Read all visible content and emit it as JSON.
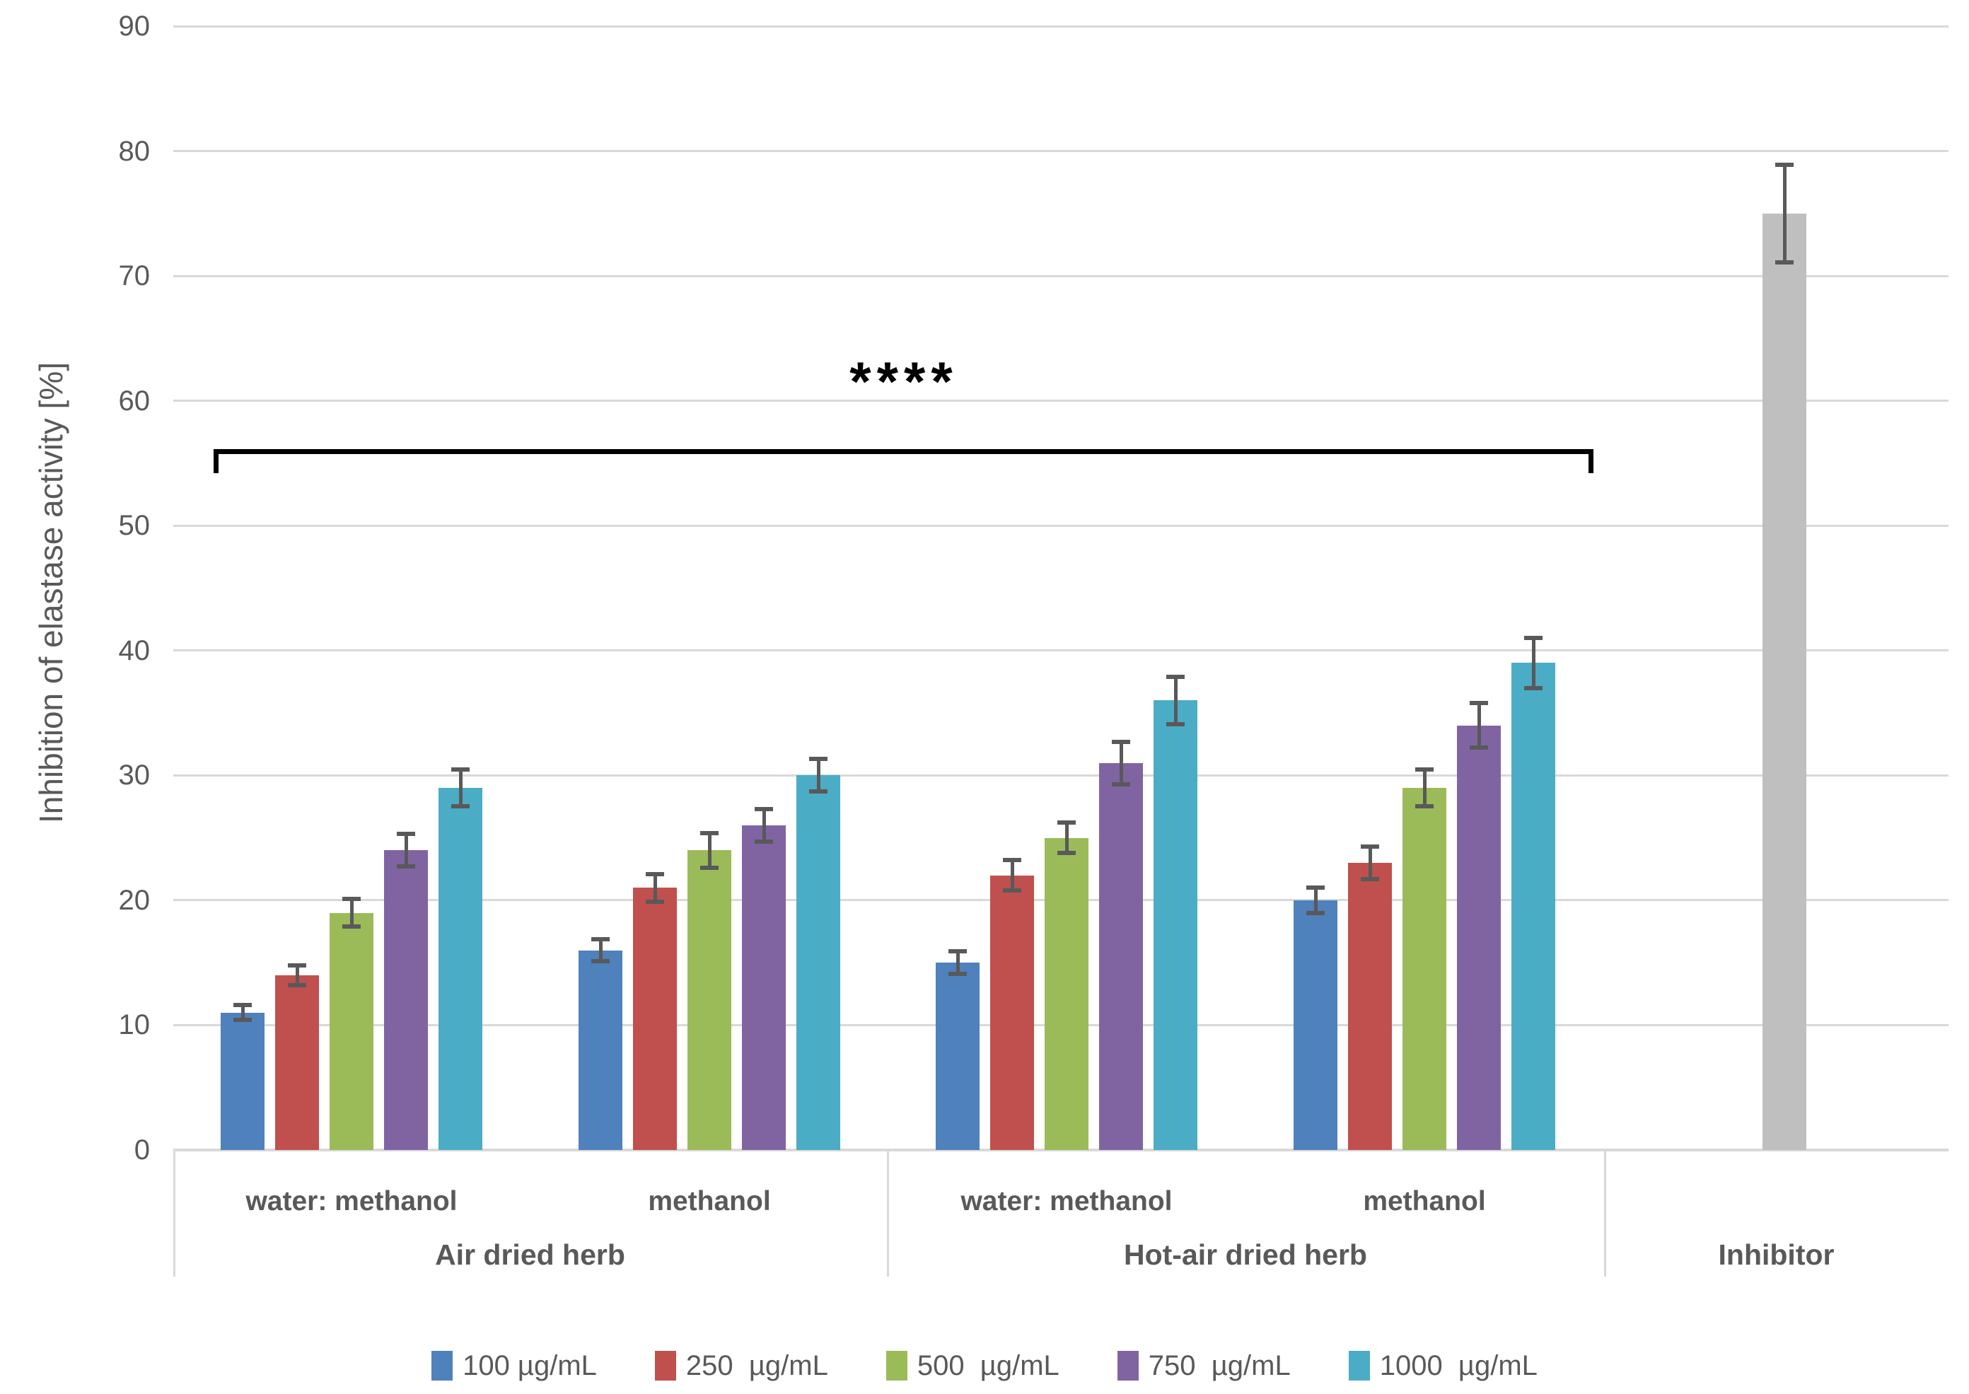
{
  "chart_data": {
    "type": "bar",
    "title": "",
    "ylabel": "Inhibition of elastase activity [%]",
    "xlabel": "",
    "ylim": [
      0,
      90
    ],
    "ytick_step": 10,
    "yticks": [
      0,
      10,
      20,
      30,
      40,
      50,
      60,
      70,
      80,
      90
    ],
    "grid": true,
    "legend_position": "bottom",
    "group_labels": [
      "water: methanol",
      "methanol",
      "water: methanol",
      "methanol"
    ],
    "sections": [
      {
        "label": "Air dried herb",
        "group_indices": [
          0,
          1
        ]
      },
      {
        "label": "Hot-air dried herb",
        "group_indices": [
          2,
          3
        ]
      },
      {
        "label": "Inhibitor",
        "group_indices": []
      }
    ],
    "series": [
      {
        "name": "100 µg/mL",
        "color": "#4F81BD",
        "values": [
          11,
          16,
          15,
          20
        ],
        "errors": [
          0.6,
          0.9,
          0.9,
          1.0
        ]
      },
      {
        "name": "250  µg/mL",
        "color": "#C0504D",
        "values": [
          14,
          21,
          22,
          23
        ],
        "errors": [
          0.8,
          1.1,
          1.2,
          1.3
        ]
      },
      {
        "name": "500  µg/mL",
        "color": "#9BBB59",
        "values": [
          19,
          24,
          25,
          29
        ],
        "errors": [
          1.1,
          1.4,
          1.2,
          1.5
        ]
      },
      {
        "name": "750  µg/mL",
        "color": "#8064A2",
        "values": [
          24,
          26,
          31,
          34
        ],
        "errors": [
          1.3,
          1.3,
          1.7,
          1.8
        ]
      },
      {
        "name": "1000  µg/mL",
        "color": "#4BACC6",
        "values": [
          29,
          30,
          36,
          39
        ],
        "errors": [
          1.5,
          1.3,
          1.9,
          2.0
        ]
      }
    ],
    "inhibitor_bar": {
      "label": "Inhibitor",
      "value": 75,
      "error": 3.9,
      "color": "#BFBFBF"
    },
    "annotation": {
      "text": "****"
    }
  },
  "colors": {
    "grid": "#d9d9d9",
    "axis_line": "#d9d9d9",
    "error_bar": "#595959",
    "text": "#595959",
    "annotation": "#000000"
  }
}
